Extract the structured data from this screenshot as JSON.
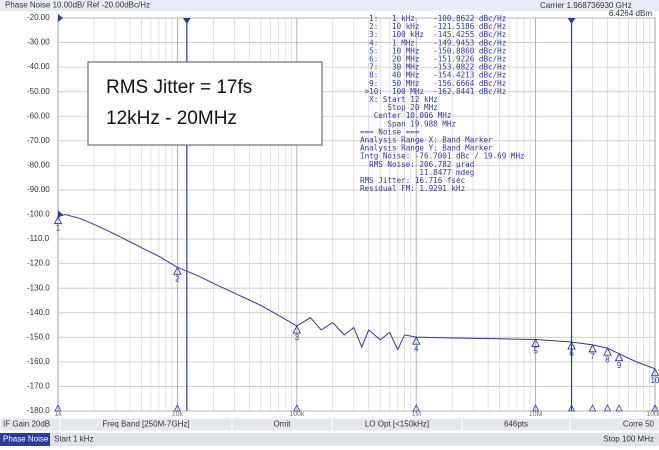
{
  "header": {
    "title": "Phase Noise 10.00dB/ Ref -20.00dBc/Hz",
    "carrier": "Carrier 1.968736930 GHz",
    "power": "6.4264 dBm"
  },
  "chart_data": {
    "type": "line",
    "xscale": "log",
    "grid": true,
    "color": "#2b3a9c",
    "xlim": [
      1000,
      100000000
    ],
    "xticks": [
      {
        "value": 1000,
        "label": "1k"
      },
      {
        "value": 10000,
        "label": "10k"
      },
      {
        "value": 100000,
        "label": "100k"
      },
      {
        "value": 1000000,
        "label": "1M"
      },
      {
        "value": 10000000,
        "label": "10M"
      },
      {
        "value": 100000000,
        "label": "100M"
      }
    ],
    "xminorticks": [
      2000,
      3000,
      4000,
      5000,
      6000,
      7000,
      8000,
      9000,
      20000,
      30000,
      40000,
      50000,
      60000,
      70000,
      80000,
      90000,
      200000,
      300000,
      400000,
      500000,
      600000,
      700000,
      800000,
      900000,
      2000000,
      3000000,
      4000000,
      5000000,
      6000000,
      7000000,
      8000000,
      9000000,
      20000000,
      30000000,
      40000000,
      50000000,
      60000000,
      70000000,
      80000000,
      90000000
    ],
    "ylim": [
      -180,
      -20
    ],
    "yticks": [
      {
        "value": -20,
        "label": "-20.00"
      },
      {
        "value": -30,
        "label": "-30.00"
      },
      {
        "value": -40,
        "label": "-40.00"
      },
      {
        "value": -50,
        "label": "-50.00"
      },
      {
        "value": -60,
        "label": "-60.00"
      },
      {
        "value": -70,
        "label": "-70.00"
      },
      {
        "value": -80,
        "label": "-80.00"
      },
      {
        "value": -90,
        "label": "-90.00"
      },
      {
        "value": -100,
        "label": "-100.0"
      },
      {
        "value": -110,
        "label": "-110.0"
      },
      {
        "value": -120,
        "label": "-120.0"
      },
      {
        "value": -130,
        "label": "-130.0"
      },
      {
        "value": -140,
        "label": "-140.0"
      },
      {
        "value": -150,
        "label": "-150.0"
      },
      {
        "value": -160,
        "label": "-160.0"
      },
      {
        "value": -170,
        "label": "-170.0"
      },
      {
        "value": -180,
        "label": "-180.0"
      }
    ],
    "x": [
      1000,
      1150,
      1500,
      2000,
      3000,
      5000,
      7000,
      10000,
      15000,
      20000,
      30000,
      50000,
      70000,
      100000,
      130000,
      160000,
      200000,
      250000,
      300000,
      350000,
      400000,
      500000,
      600000,
      700000,
      800000,
      1000000,
      2000000,
      5000000,
      10000000,
      20000000,
      30000000,
      40000000,
      50000000,
      70000000,
      100000000
    ],
    "values": [
      -100.9,
      -100,
      -101.5,
      -104,
      -108,
      -113.5,
      -117,
      -121.5,
      -125,
      -128,
      -132,
      -137,
      -141,
      -145.4,
      -142,
      -147,
      -144,
      -149,
      -146,
      -154,
      -147,
      -151,
      -148,
      -155,
      -149,
      -149.9,
      -150.3,
      -150.6,
      -150.9,
      -151.9,
      -153.1,
      -154.4,
      -156.7,
      -160,
      -162.8
    ],
    "band_markers": [
      12000,
      20000000
    ],
    "markers": [
      {
        "label": "1",
        "x": 1000,
        "value": -100.8622
      },
      {
        "label": "2",
        "x": 10000,
        "value": -121.5186
      },
      {
        "label": "3",
        "x": 100000,
        "value": -145.4255
      },
      {
        "label": "4",
        "x": 1000000,
        "value": -149.9453
      },
      {
        "label": "5",
        "x": 10000000,
        "value": -150.886
      },
      {
        "label": "6",
        "x": 20000000,
        "value": -151.9226
      },
      {
        "label": "7",
        "x": 30000000,
        "value": -153.0822
      },
      {
        "label": "8",
        "x": 40000000,
        "value": -154.4213
      },
      {
        "label": "9",
        "x": 50000000,
        "value": -156.6664
      },
      {
        "label": "10",
        "x": 100000000,
        "value": -162.8441
      }
    ],
    "annotations": [
      "RMS Jitter = 17fs",
      "12kHz - 20MHz"
    ]
  },
  "marker_table": [
    "  1:   1 kHz    -100.8622 dBc/Hz",
    "  2:   10 kHz   -121.5186 dBc/Hz",
    "  3:   100 kHz  -145.4255 dBc/Hz",
    "  4:   1 MHz    -149.9453 dBc/Hz",
    "  5:   10 MHz   -150.8860 dBc/Hz",
    "  6:   20 MHz   -151.9226 dBc/Hz",
    "  7:   30 MHz   -153.0822 dBc/Hz",
    "  8:   40 MHz   -154.4213 dBc/Hz",
    "  9:   50 MHz   -156.6664 dBc/Hz",
    " >10:  100 MHz  -162.8441 dBc/Hz",
    "  X: Start 12 kHz",
    "      Stop 20 MHz",
    "   Center 10.006 MHz",
    "      Span 19.988 MHz",
    "=== Noise ===",
    "Analysis Range X: Band Marker",
    "Analysis Range Y: Band Marker",
    "Intg Noise: -76.7001 dBc / 19.69 MHz",
    "  RMS Noise: 206.782 µrad",
    "             11.8477 mdeg",
    "RMS Jitter: 16.716 fsec",
    "Residual FM: 1.9291 kHz"
  ],
  "status_bar": [
    "IF Gain 20dB",
    "Freq Band [250M-7GHz]",
    "Omit",
    "LO Opt [<150kHz]",
    "646pts",
    "Corre 50"
  ],
  "footer": {
    "mode": "Phase Noise",
    "start": "Start 1 kHz",
    "stop": "Stop 100 MHz"
  }
}
